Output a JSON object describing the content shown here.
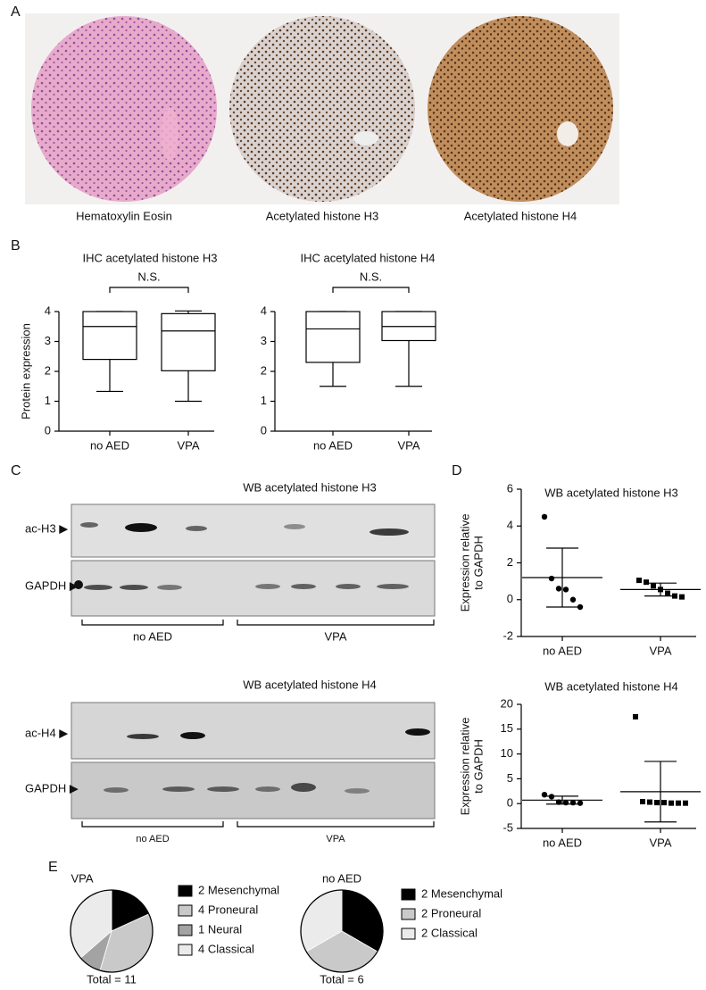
{
  "panel_labels": [
    "A",
    "B",
    "C",
    "D",
    "E"
  ],
  "panel_a": {
    "captions": [
      "Hematoxylin Eosin",
      "Acetylated histone H3",
      "Acetylated histone H4"
    ]
  },
  "panel_c": {
    "blots": [
      {
        "title": "WB acetylated histone H3",
        "rows": [
          "ac-H3 ▶",
          "GAPDH ▶"
        ],
        "groups": [
          "no AED",
          "VPA"
        ]
      },
      {
        "title": "WB acetylated histone H4",
        "rows": [
          "ac-H4 ▶",
          "GAPDH ▶"
        ],
        "groups": [
          "no AED",
          "VPA"
        ]
      }
    ]
  },
  "chart_data": [
    {
      "type": "box",
      "title": "IHC acetylated histone H3",
      "ylabel": "Protein expression",
      "annotation": "N.S.",
      "categories": [
        "no AED",
        "VPA"
      ],
      "min": [
        1.33,
        1
      ],
      "q1": [
        2.4,
        2.02
      ],
      "median": [
        3.5,
        3.35
      ],
      "q3": [
        4,
        3.93
      ],
      "max": [
        4,
        4.02
      ],
      "ylim": [
        0,
        4
      ],
      "yticks": [
        0,
        1,
        2,
        3,
        4
      ]
    },
    {
      "type": "box",
      "title": "IHC acetylated histone H4",
      "annotation": "N.S.",
      "categories": [
        "no AED",
        "VPA"
      ],
      "min": [
        1.5,
        1.5
      ],
      "q1": [
        2.3,
        3.03
      ],
      "median": [
        3.42,
        3.5
      ],
      "q3": [
        4,
        4
      ],
      "max": [
        4,
        4
      ],
      "ylim": [
        0,
        4
      ],
      "yticks": [
        0,
        1,
        2,
        3,
        4
      ]
    },
    {
      "type": "dot",
      "title": "WB acetylated histone H3",
      "ylabel": [
        "Expression relative",
        "to GAPDH"
      ],
      "categories": [
        "no AED",
        "VPA"
      ],
      "markers": [
        "circle",
        "square"
      ],
      "points": [
        [
          4.5,
          1.15,
          0.6,
          0.55,
          0,
          -0.4
        ],
        [
          1.05,
          0.95,
          0.75,
          0.55,
          0.35,
          0.2,
          0.15
        ]
      ],
      "mean": [
        1.2,
        0.55
      ],
      "sd": [
        1.6,
        0.35
      ],
      "ylim": [
        -2,
        6
      ],
      "yticks": [
        -2,
        0,
        2,
        4,
        6
      ]
    },
    {
      "type": "dot",
      "title": "WB acetylated histone H4",
      "ylabel": [
        "Expression relative",
        "to GAPDH"
      ],
      "categories": [
        "no AED",
        "VPA"
      ],
      "markers": [
        "circle",
        "square"
      ],
      "points": [
        [
          1.8,
          1.4,
          0.3,
          0.2,
          0.2,
          0.1
        ],
        [
          17.5,
          0.4,
          0.3,
          0.2,
          0.2,
          0.1,
          0.1,
          0.1
        ]
      ],
      "mean": [
        0.7,
        2.4
      ],
      "sd": [
        0.8,
        6.1
      ],
      "ylim": [
        -5,
        20
      ],
      "yticks": [
        -5,
        0,
        5,
        10,
        15,
        20
      ]
    },
    {
      "type": "pie",
      "title": "VPA",
      "total_label": "Total = 11",
      "categories": [
        "2 Mesenchymal",
        "4 Proneural",
        "1 Neural",
        "4 Classical"
      ],
      "values": [
        2,
        4,
        1,
        4
      ],
      "colors": [
        "#000000",
        "#c9c9c9",
        "#a3a3a3",
        "#ebebeb"
      ]
    },
    {
      "type": "pie",
      "title": "no AED",
      "total_label": "Total = 6",
      "categories": [
        "2 Mesenchymal",
        "2 Proneural",
        "2 Classical"
      ],
      "values": [
        2,
        2,
        2
      ],
      "colors": [
        "#000000",
        "#c9c9c9",
        "#ebebeb"
      ]
    }
  ]
}
